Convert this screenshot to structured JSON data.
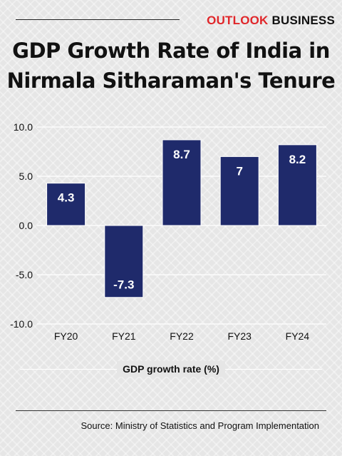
{
  "brand": {
    "part1": "OUTLOOK",
    "part2": "BUSINESS"
  },
  "title_line1": "GDP Growth Rate of India in",
  "title_line2": "Nirmala Sitharaman's Tenure",
  "source": "Source: Ministry of Statistics and Program Implementation",
  "colors": {
    "bar": "#1f2a6b",
    "brand_red": "#e0262a",
    "background": "#e6e6e6"
  },
  "chart_data": {
    "type": "bar",
    "title": "GDP Growth Rate of India in Nirmala Sitharaman's Tenure",
    "categories": [
      "FY20",
      "FY21",
      "FY22",
      "FY23",
      "FY24"
    ],
    "values": [
      4.3,
      -7.3,
      8.7,
      7,
      8.2
    ],
    "value_labels": [
      "4.3",
      "-7.3",
      "8.7",
      "7",
      "8.2"
    ],
    "xlabel": "GDP growth rate (%)",
    "ylabel": "",
    "ylim": [
      -10,
      10
    ],
    "yticks": [
      10,
      5,
      0,
      -5,
      -10
    ],
    "ytick_labels": [
      "10.0",
      "5.0",
      "0.0",
      "-5.0",
      "-10.0"
    ],
    "grid": true,
    "legend": "none"
  }
}
